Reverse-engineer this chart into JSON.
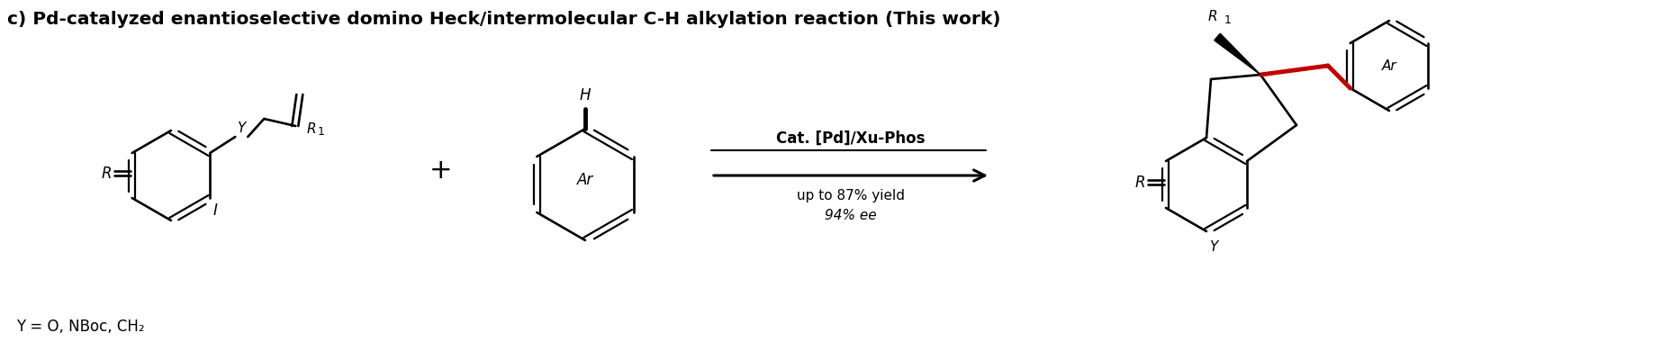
{
  "title_normal": "c) Pd-catalyzed enantioselective domino Heck/intermolecular C-H alkylation reaction ",
  "title_bold": "(This work)",
  "cat_text_line1": "Cat. [Pd]/Xu-Phos",
  "cat_text_line2": "up to 87% yield",
  "cat_text_line3": "94% ee",
  "y_label": "Y = O, NBoc, CH₂",
  "red_bond_color": "#c00000",
  "bg_color": "#ffffff",
  "fig_width": 18.66,
  "fig_height": 4.0,
  "dpi": 100,
  "title_fontsize": 14.5,
  "cat_fontsize": 12,
  "label_fontsize": 12
}
